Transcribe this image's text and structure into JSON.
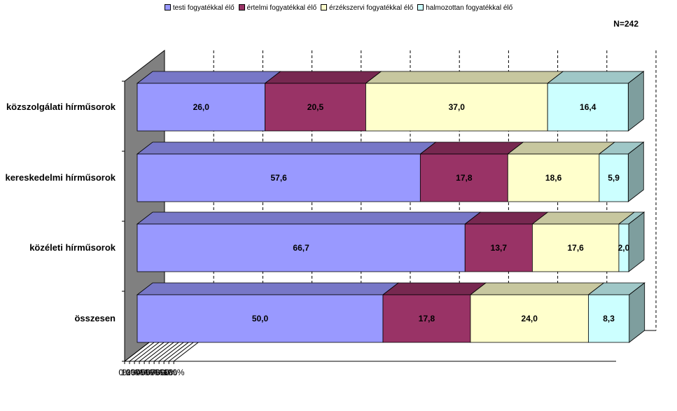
{
  "chart_data": {
    "type": "bar",
    "stacked": "100%",
    "orientation": "horizontal",
    "three_d": true,
    "categories": [
      "közszolgálati hírműsorok",
      "kereskedelmi hírműsorok",
      "közéleti hírműsorok",
      "összesen"
    ],
    "series": [
      {
        "name": "testi fogyatékkal élő",
        "color": "#9999FF",
        "values": [
          26.0,
          57.6,
          66.7,
          50.0
        ],
        "labels": [
          "26,0",
          "57,6",
          "66,7",
          "50,0"
        ]
      },
      {
        "name": "értelmi fogyatékkal élő",
        "color": "#993366",
        "values": [
          20.5,
          17.8,
          13.7,
          17.8
        ],
        "labels": [
          "20,5",
          "17,8",
          "13,7",
          "17,8"
        ]
      },
      {
        "name": "érzékszervi fogyatékkal élő",
        "color": "#FFFFCC",
        "values": [
          37.0,
          18.6,
          17.6,
          24.0
        ],
        "labels": [
          "37,0",
          "18,6",
          "17,6",
          "24,0"
        ]
      },
      {
        "name": "halmozottan fogyatékkal élő",
        "color": "#CCFFFF",
        "values": [
          16.4,
          5.9,
          2.0,
          8.3
        ],
        "labels": [
          "16,4",
          "5,9",
          "2,0",
          "8,3"
        ]
      }
    ],
    "xlim": [
      0,
      100
    ],
    "x_ticks": [
      "0%",
      "10%",
      "20%",
      "30%",
      "40%",
      "50%",
      "60%",
      "70%",
      "80%",
      "90%",
      "100%"
    ],
    "grid": "vertical dashed",
    "legend_position": "top",
    "annotation": "N=242"
  }
}
